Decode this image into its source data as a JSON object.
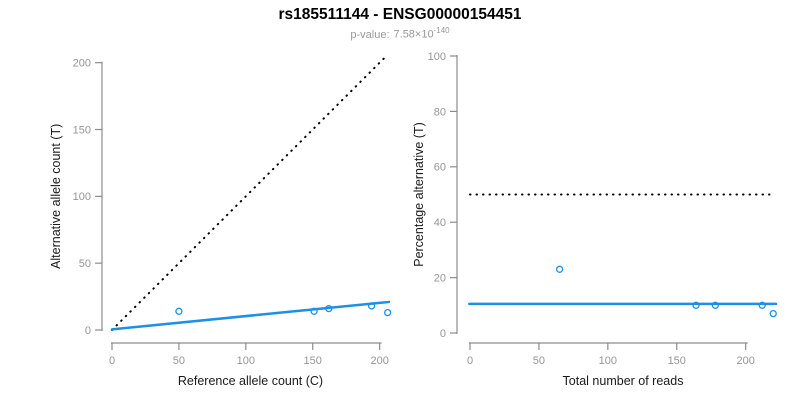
{
  "header": {
    "title": "rs185511144 - ENSG00000154451",
    "p_value_label": "p-value:",
    "p_value_mantissa": "7.58×10",
    "p_value_exponent": "-140"
  },
  "colors": {
    "accent_blue": "#1E8FE6",
    "reference_black": "#000000",
    "axis_line": "#8C8C8C",
    "tick_label": "#969696",
    "axis_title": "#1A1A1A",
    "subtitle_gray": "#999999"
  },
  "chart_data": [
    {
      "type": "scatter",
      "name": "left-plot",
      "xlabel": "Reference allele count (C)",
      "ylabel": "Alternative allele count (T)",
      "xlim": [
        0,
        207
      ],
      "ylim": [
        0,
        205
      ],
      "xticks": [
        0,
        50,
        100,
        150,
        200
      ],
      "yticks": [
        0,
        50,
        100,
        150,
        200
      ],
      "grid": false,
      "points": [
        [
          50,
          14
        ],
        [
          151,
          14
        ],
        [
          162,
          16
        ],
        [
          194,
          18
        ],
        [
          206,
          13
        ]
      ],
      "lines": [
        {
          "role": "identity-line",
          "style": "dotted",
          "color": "#000000",
          "x1": 0,
          "y1": 0,
          "x2": 204.5,
          "y2": 204.5
        },
        {
          "role": "fit-line",
          "style": "solid",
          "color": "#1E8FE6",
          "x1": 0,
          "y1": 0.5,
          "x2": 207,
          "y2": 21
        }
      ]
    },
    {
      "type": "scatter",
      "name": "right-plot",
      "xlabel": "Total number of reads",
      "ylabel": "Percentage alternative (T)",
      "xlim": [
        0,
        222
      ],
      "ylim": [
        0,
        100
      ],
      "xticks": [
        0,
        50,
        100,
        150,
        200
      ],
      "yticks": [
        0,
        20,
        40,
        60,
        80,
        100
      ],
      "grid": false,
      "points": [
        [
          65,
          23
        ],
        [
          164,
          10
        ],
        [
          178,
          10
        ],
        [
          212,
          10
        ],
        [
          220,
          7
        ]
      ],
      "lines": [
        {
          "role": "reference-line",
          "style": "dotted",
          "color": "#000000",
          "x1": 0,
          "y1": 50,
          "x2": 221,
          "y2": 50
        },
        {
          "role": "fit-line",
          "style": "solid",
          "color": "#1E8FE6",
          "x1": -0.5,
          "y1": 10.5,
          "x2": 222,
          "y2": 10.5
        }
      ]
    }
  ]
}
